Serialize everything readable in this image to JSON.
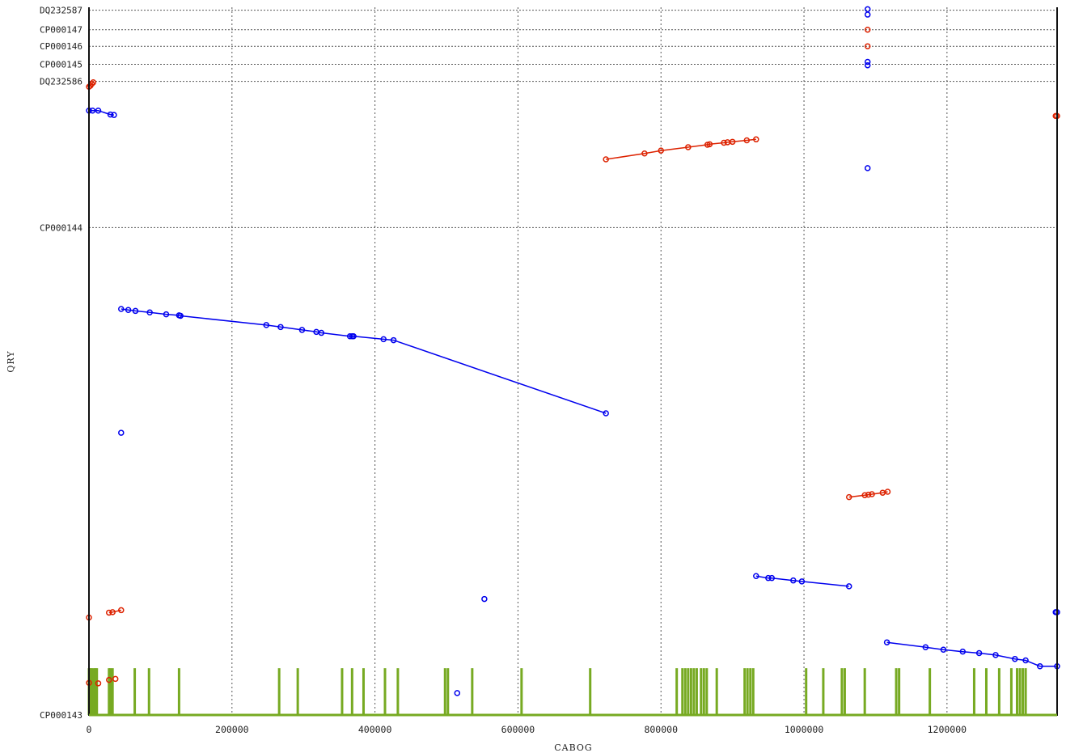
{
  "chart_data": {
    "type": "scatter",
    "title": "",
    "xlabel": "CABOG",
    "ylabel": "QRY",
    "xlim": [
      0,
      1354000
    ],
    "x_ticks": [
      0,
      200000,
      400000,
      600000,
      800000,
      1000000,
      1200000
    ],
    "grid": true,
    "y_sequences": [
      {
        "label": "CP000143",
        "start": 0
      },
      {
        "label": "CP000144",
        "start": 1000
      },
      {
        "label": "DQ232586",
        "start": 1300
      },
      {
        "label": "CP000145",
        "start": 1335
      },
      {
        "label": "CP000146",
        "start": 1372
      },
      {
        "label": "CP000147",
        "start": 1406
      },
      {
        "label": "DQ232587",
        "start": 1446
      }
    ],
    "ylim": [
      0,
      1452
    ],
    "colors": {
      "forward": "#dd2200",
      "reverse": "#0000ee",
      "coverage": "#77aa22",
      "grid": "#555555"
    },
    "series": [
      {
        "name": "",
        "color": "#0000ee",
        "segments": [
          [
            [
              45000,
              833
            ],
            [
              55000,
              831
            ],
            [
              65000,
              829
            ],
            [
              85000,
              826
            ],
            [
              108000,
              822
            ],
            [
              126000,
              820
            ],
            [
              128000,
              819
            ],
            [
              248000,
              800
            ],
            [
              268000,
              796
            ],
            [
              298000,
              790
            ],
            [
              318000,
              786
            ],
            [
              325000,
              784
            ],
            [
              365000,
              777
            ],
            [
              368000,
              777
            ],
            [
              370000,
              777
            ],
            [
              412000,
              771
            ],
            [
              426000,
              769
            ],
            [
              723000,
              619
            ]
          ],
          [
            [
              0,
              1240
            ],
            [
              5000,
              1240
            ],
            [
              13000,
              1240
            ],
            [
              30000,
              1232
            ],
            [
              35000,
              1231
            ]
          ],
          [
            [
              933000,
              285
            ],
            [
              950000,
              281
            ],
            [
              955000,
              281
            ],
            [
              985000,
              276
            ],
            [
              997000,
              274
            ],
            [
              1063000,
              264
            ]
          ],
          [
            [
              1116000,
              149
            ],
            [
              1170000,
              139
            ],
            [
              1195000,
              134
            ],
            [
              1222000,
              130
            ],
            [
              1245000,
              127
            ],
            [
              1268000,
              123
            ],
            [
              1295000,
              115
            ],
            [
              1310000,
              112
            ],
            [
              1330000,
              100
            ],
            [
              1354000,
              100
            ]
          ]
        ],
        "points": [
          [
            45000,
            579
          ],
          [
            553000,
            238
          ],
          [
            515000,
            45
          ],
          [
            1089000,
            1122
          ],
          [
            1089000,
            1437
          ],
          [
            1089000,
            1448
          ],
          [
            1089000,
            1340
          ],
          [
            1089000,
            1333
          ],
          [
            1352000,
            211
          ],
          [
            1354000,
            211
          ]
        ]
      },
      {
        "name": "",
        "color": "#dd2200",
        "segments": [
          [
            [
              723000,
              1140
            ],
            [
              777000,
              1152
            ],
            [
              800000,
              1158
            ],
            [
              838000,
              1165
            ],
            [
              865000,
              1170
            ],
            [
              868000,
              1171
            ],
            [
              888000,
              1174
            ],
            [
              893000,
              1175
            ],
            [
              900000,
              1176
            ],
            [
              920000,
              1179
            ],
            [
              933000,
              1181
            ]
          ],
          [
            [
              1063000,
              447
            ],
            [
              1085000,
              451
            ],
            [
              1090000,
              452
            ],
            [
              1095000,
              453
            ],
            [
              1110000,
              456
            ],
            [
              1117000,
              458
            ]
          ],
          [
            [
              0,
              1289
            ],
            [
              2000,
              1291
            ],
            [
              4000,
              1295
            ],
            [
              6000,
              1298
            ]
          ],
          [
            [
              28000,
              210
            ],
            [
              33000,
              211
            ],
            [
              45000,
              215
            ]
          ]
        ],
        "points": [
          [
            1352000,
            1229
          ],
          [
            1354000,
            1229
          ],
          [
            0,
            200
          ],
          [
            0,
            66
          ],
          [
            13000,
            65
          ],
          [
            28000,
            72
          ],
          [
            37000,
            74
          ],
          [
            1089000,
            1372
          ],
          [
            1089000,
            1406
          ]
        ]
      }
    ],
    "coverage_bars": [
      0,
      2000,
      4000,
      7000,
      9000,
      11000,
      28000,
      30000,
      33000,
      64000,
      84000,
      126000,
      266000,
      292000,
      354000,
      368000,
      384000,
      414000,
      432000,
      498000,
      502000,
      536000,
      605000,
      701000,
      822000,
      830000,
      834000,
      838000,
      842000,
      846000,
      850000,
      856000,
      860000,
      864000,
      878000,
      917000,
      921000,
      925000,
      929000,
      1003000,
      1027000,
      1053000,
      1057000,
      1085000,
      1129000,
      1133000,
      1176000,
      1238000,
      1255000,
      1273000,
      1290000,
      1298000,
      1302000,
      1306000,
      1310000
    ]
  }
}
